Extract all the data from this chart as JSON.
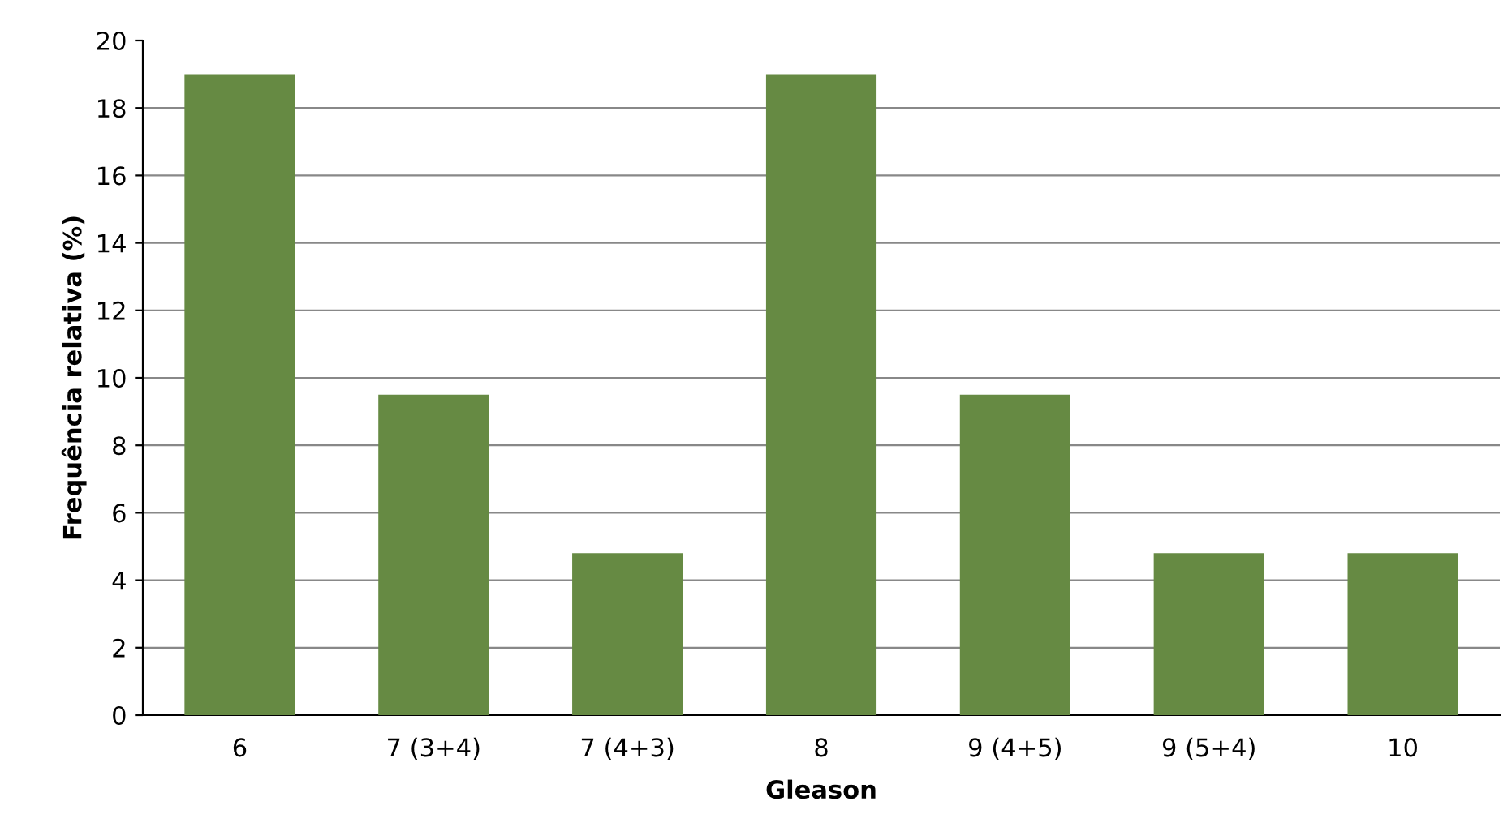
{
  "chart_data": {
    "type": "bar",
    "xlabel": "Gleason",
    "ylabel": "Frequência relativa (%)",
    "categories": [
      "6",
      "7 (3+4)",
      "7 (4+3)",
      "8",
      "9 (4+5)",
      "9 (5+4)",
      "10"
    ],
    "values": [
      19.0,
      9.5,
      4.8,
      19.0,
      9.5,
      4.8,
      4.8
    ],
    "color": "#668a43",
    "ylim": [
      0,
      20
    ],
    "yticks": [
      0,
      2,
      4,
      6,
      8,
      10,
      12,
      14,
      16,
      18,
      20
    ],
    "grid": "y",
    "legend": false
  }
}
